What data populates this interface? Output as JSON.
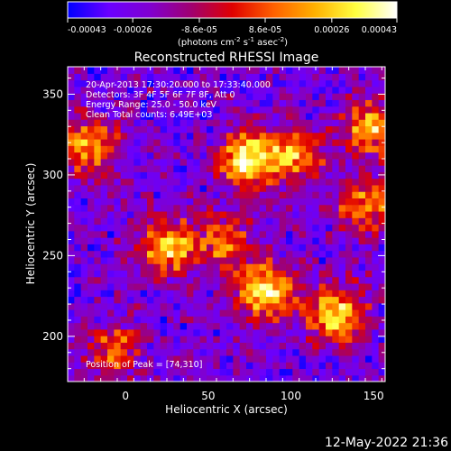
{
  "figure": {
    "title": "Reconstructed RHESSI Image",
    "footer_date": "12-May-2022 21:36",
    "info_lines": [
      "20-Apr-2013 17:30:20.000 to 17:33:40.000",
      "Detectors: 3F 4F 5F 6F 7F 8F, Att 0",
      "Energy Range: 25.0 - 50.0 keV",
      "Clean     Total counts: 6.49E+03"
    ],
    "peak_label": "Position of Peak = [74,310]"
  },
  "colorbar": {
    "colors": [
      "#0000ff",
      "#6a00ff",
      "#8000d0",
      "#a00070",
      "#e00000",
      "#ff6000",
      "#ffb000",
      "#ffff40",
      "#ffffff"
    ],
    "range": [
      -0.00043,
      0.00043
    ],
    "tick_values": [
      -0.00043,
      -0.00026,
      -8.6e-05,
      8.6e-05,
      0.00026,
      0.00043
    ],
    "tick_labels": [
      "-0.00043",
      "-0.00026",
      "-8.6e-05",
      "8.6e-05",
      "0.00026",
      "0.00043"
    ],
    "unit_main": "(photons cm",
    "unit_exp1": "-2",
    "unit_s": " s",
    "unit_exp2": "-1",
    "unit_asec": " asec",
    "unit_exp3": "-2",
    "unit_close": ")"
  },
  "chart_data": {
    "type": "heatmap",
    "title": "Reconstructed RHESSI Image",
    "xlabel": "Heliocentric X (arcsec)",
    "ylabel": "Heliocentric Y (arcsec)",
    "xlim": [
      -35,
      157
    ],
    "ylim": [
      172,
      367
    ],
    "xticks": [
      0,
      50,
      100,
      150
    ],
    "yticks": [
      200,
      250,
      300,
      350
    ],
    "peak": [
      74,
      310
    ],
    "grid_cells": [
      48,
      48
    ],
    "value_range": [
      -0.00043,
      0.00043
    ],
    "bright_sources": [
      {
        "x": 74,
        "y": 310,
        "rel_intensity": 1.0
      },
      {
        "x": 128,
        "y": 214,
        "rel_intensity": 0.95
      },
      {
        "x": 85,
        "y": 228,
        "rel_intensity": 0.9
      },
      {
        "x": 25,
        "y": 255,
        "rel_intensity": 0.85
      },
      {
        "x": 148,
        "y": 330,
        "rel_intensity": 0.8
      },
      {
        "x": 103,
        "y": 312,
        "rel_intensity": 0.7
      },
      {
        "x": -22,
        "y": 318,
        "rel_intensity": 0.75
      },
      {
        "x": 60,
        "y": 258,
        "rel_intensity": 0.6
      },
      {
        "x": 145,
        "y": 282,
        "rel_intensity": 0.65
      },
      {
        "x": -8,
        "y": 192,
        "rel_intensity": 0.55
      }
    ]
  }
}
